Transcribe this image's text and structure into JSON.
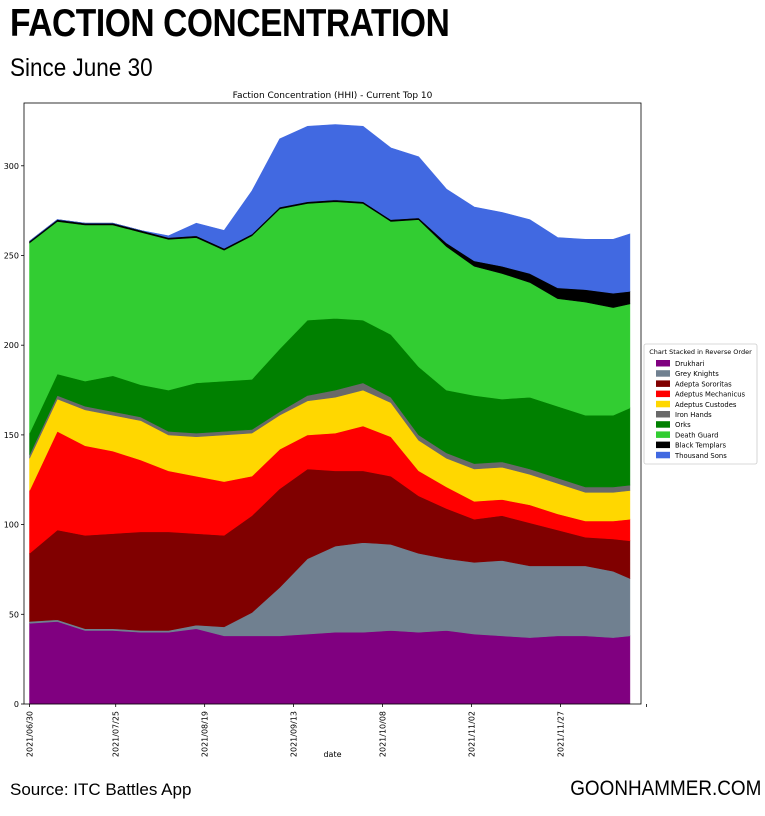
{
  "header": {
    "title": "FACTION CONCENTRATION",
    "subtitle": "Since June 30"
  },
  "footer": {
    "source": "Source: ITC Battles App",
    "brand": "GOONHAMMER.COM"
  },
  "chart_data": {
    "type": "area",
    "stacked": true,
    "title": "Faction Concentration (HHI) - Current Top 10",
    "xlabel": "date",
    "ylabel": "",
    "ylim": [
      0,
      335
    ],
    "xlim": [
      -1,
      110
    ],
    "yticks": [
      0,
      50,
      100,
      150,
      200,
      250,
      300
    ],
    "xticks": [
      {
        "x": 0,
        "label": "2021/06/30"
      },
      {
        "x": 15.5,
        "label": "2021/07/25"
      },
      {
        "x": 31.5,
        "label": "2021/08/19"
      },
      {
        "x": 47.5,
        "label": "2021/09/13"
      },
      {
        "x": 63.5,
        "label": "2021/10/08"
      },
      {
        "x": 79.5,
        "label": "2021/11/02"
      },
      {
        "x": 95.5,
        "label": "2021/11/27"
      },
      {
        "x": 111,
        "label": ""
      }
    ],
    "legend": {
      "title": "Chart Stacked in Reverse Order",
      "placement": "right"
    },
    "x": [
      0,
      5,
      10,
      15,
      20,
      25,
      30,
      35,
      40,
      45,
      50,
      55,
      60,
      65,
      70,
      75,
      80,
      85,
      90,
      95,
      100,
      105,
      108
    ],
    "series": [
      {
        "name": "Drukhari",
        "color": "#800080",
        "values": [
          45,
          46,
          41,
          41,
          40,
          40,
          42,
          38,
          38,
          38,
          39,
          40,
          40,
          41,
          40,
          41,
          39,
          38,
          37,
          38,
          38,
          37,
          38
        ]
      },
      {
        "name": "Grey Knights",
        "color": "#708090",
        "values": [
          1,
          1,
          1,
          1,
          1,
          1,
          2,
          5,
          13,
          27,
          42,
          48,
          50,
          48,
          44,
          40,
          40,
          42,
          40,
          39,
          39,
          37,
          32
        ]
      },
      {
        "name": "Adepta Sororitas",
        "color": "#800000",
        "values": [
          38,
          50,
          52,
          53,
          55,
          55,
          51,
          51,
          54,
          55,
          50,
          42,
          40,
          38,
          32,
          28,
          24,
          25,
          24,
          20,
          16,
          18,
          21
        ]
      },
      {
        "name": "Adeptus Mechanicus",
        "color": "#ff0000",
        "values": [
          35,
          55,
          50,
          46,
          40,
          34,
          32,
          30,
          22,
          22,
          19,
          21,
          25,
          22,
          14,
          12,
          10,
          9,
          10,
          9,
          9,
          10,
          12
        ]
      },
      {
        "name": "Adeptus Custodes",
        "color": "#ffd700",
        "values": [
          18,
          18,
          20,
          20,
          22,
          20,
          22,
          26,
          24,
          19,
          19,
          20,
          20,
          19,
          17,
          16,
          18,
          18,
          17,
          17,
          16,
          16,
          16
        ]
      },
      {
        "name": "Iron Hands",
        "color": "#696969",
        "values": [
          2,
          2,
          2,
          2,
          2,
          2,
          2,
          2,
          2,
          2,
          3,
          4,
          4,
          3,
          3,
          3,
          3,
          3,
          3,
          3,
          3,
          3,
          3
        ]
      },
      {
        "name": "Orks",
        "color": "#008000",
        "values": [
          12,
          12,
          14,
          20,
          18,
          23,
          28,
          28,
          28,
          35,
          42,
          40,
          35,
          35,
          38,
          35,
          38,
          35,
          40,
          40,
          40,
          40,
          43
        ]
      },
      {
        "name": "Death Guard",
        "color": "#32cd32",
        "values": [
          106,
          85,
          87,
          84,
          85,
          84,
          81,
          73,
          80,
          78,
          65,
          65,
          65,
          63,
          82,
          80,
          72,
          70,
          64,
          60,
          63,
          60,
          58
        ]
      },
      {
        "name": "Black Templars",
        "color": "#000000",
        "values": [
          1,
          1,
          1,
          1,
          1,
          1,
          1,
          1,
          1,
          1,
          1,
          1,
          1,
          1,
          1,
          2,
          3,
          4,
          5,
          6,
          7,
          8,
          7
        ]
      },
      {
        "name": "Thousand Sons",
        "color": "#4169e1",
        "values": [
          0,
          0,
          0,
          0,
          0,
          1,
          7,
          10,
          24,
          38,
          42,
          42,
          42,
          40,
          34,
          30,
          30,
          30,
          30,
          28,
          28,
          30,
          32
        ]
      }
    ]
  }
}
